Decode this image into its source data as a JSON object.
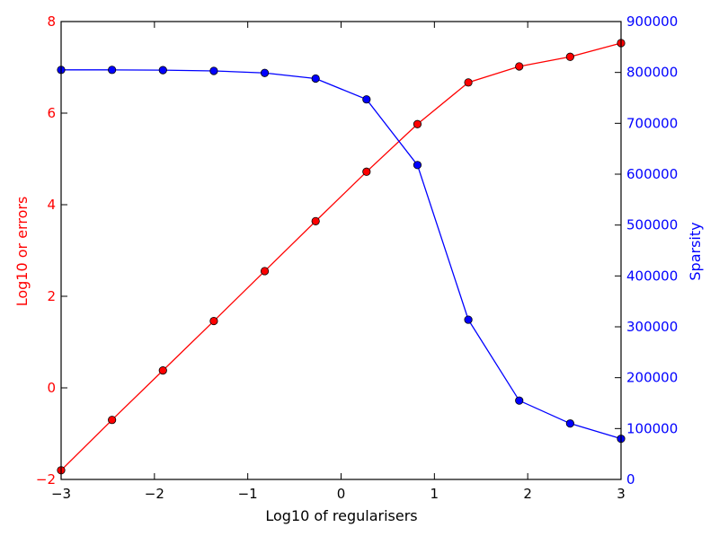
{
  "chart_data": {
    "type": "line",
    "title": "",
    "xlabel": "Log10 of regularisers",
    "ylabel_left": "Log10 or errors",
    "ylabel_right": "Sparsity",
    "xlim": [
      -3,
      3
    ],
    "ylim_left": [
      -2,
      8
    ],
    "ylim_right": [
      0,
      900000
    ],
    "x_ticks": [
      -3,
      -2,
      -1,
      0,
      1,
      2,
      3
    ],
    "x_tick_labels": [
      "−3",
      "−2",
      "−1",
      "0",
      "1",
      "2",
      "3"
    ],
    "y_left_ticks": [
      -2,
      0,
      2,
      4,
      6,
      8
    ],
    "y_left_tick_labels": [
      "−2",
      "0",
      "2",
      "4",
      "6",
      "8"
    ],
    "y_right_ticks": [
      0,
      100000,
      200000,
      300000,
      400000,
      500000,
      600000,
      700000,
      800000,
      900000
    ],
    "y_right_tick_labels": [
      "0",
      "100000",
      "200000",
      "300000",
      "400000",
      "500000",
      "600000",
      "700000",
      "800000",
      "900000"
    ],
    "grid": false,
    "colors": {
      "left": "#ff0000",
      "right": "#0000ff",
      "axes": "#000000"
    },
    "x": [
      -3.0,
      -2.4545,
      -1.9091,
      -1.3636,
      -0.8182,
      -0.2727,
      0.2727,
      0.8182,
      1.3636,
      1.9091,
      2.4545,
      3.0
    ],
    "series": [
      {
        "axis": "left",
        "color": "#ff0000",
        "values": [
          -1.8,
          -0.7,
          0.38,
          1.46,
          2.55,
          3.64,
          4.72,
          5.76,
          6.67,
          7.02,
          7.23,
          7.53
        ]
      },
      {
        "axis": "right",
        "color": "#0000ff",
        "values": [
          805000,
          805000,
          804500,
          803000,
          799000,
          788000,
          747000,
          618000,
          314000,
          155000,
          110000,
          80000
        ]
      }
    ]
  }
}
